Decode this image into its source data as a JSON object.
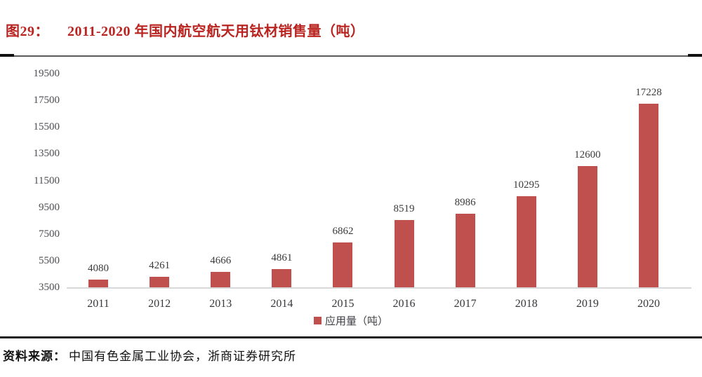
{
  "page": {
    "title_label": "图29：",
    "title_text": "2011-2020 年国内航空航天用钛材销售量（吨）",
    "footer_label": "资料来源：",
    "footer_text": "中国有色金属工业协会，浙商证券研究所"
  },
  "colors": {
    "title_red": "#B92420",
    "bar_red": "#C0504D",
    "baseline_gray": "#D9D9D9",
    "tick_label_gray": "#4d4d52",
    "separator_dark": "#1c1c1c"
  },
  "chart_data": {
    "type": "bar",
    "title": "2011-2020 年国内航空航天用钛材销售量（吨）",
    "categories": [
      "2011",
      "2012",
      "2013",
      "2014",
      "2015",
      "2016",
      "2017",
      "2018",
      "2019",
      "2020"
    ],
    "series": [
      {
        "name": "应用量（吨）",
        "values": [
          4080,
          4261,
          4666,
          4861,
          6862,
          8519,
          8986,
          10295,
          12600,
          17228
        ]
      }
    ],
    "xlabel": "",
    "ylabel": "",
    "ylim": [
      3500,
      19500
    ],
    "yticks": [
      3500,
      5500,
      7500,
      9500,
      11500,
      13500,
      15500,
      17500,
      19500
    ],
    "grid": false,
    "data_labels": true,
    "legend": {
      "label": "应用量（吨）",
      "position": "bottom-center"
    }
  }
}
